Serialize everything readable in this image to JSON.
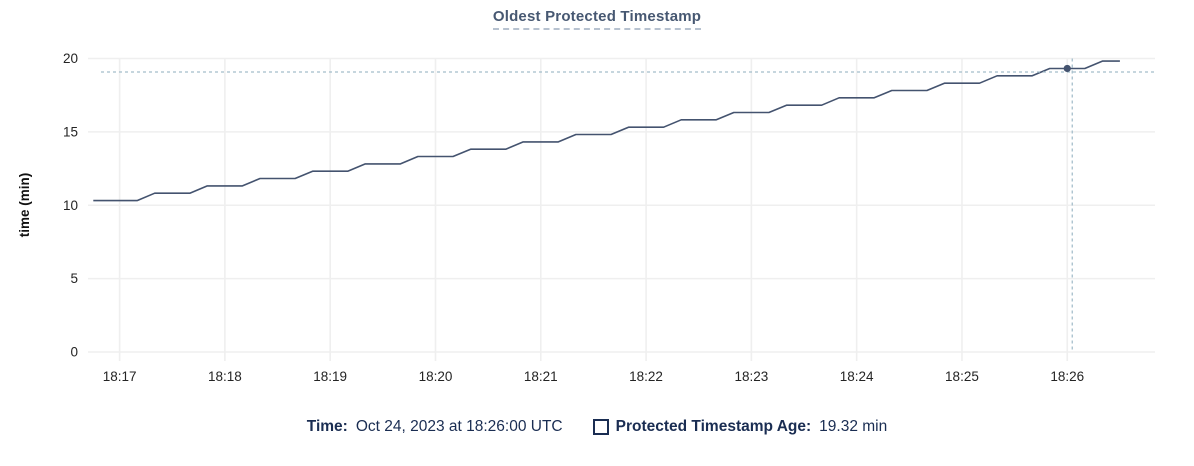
{
  "colors": {
    "title": "#475872",
    "title_underline": "#b7c2d0",
    "series_line": "#44536f",
    "crosshair": "#a5becb",
    "grid": "#efefef",
    "tick_text": "#242424",
    "tooltip_text": "#1a2d52"
  },
  "tooltip": {
    "time_label": "Time:",
    "time_value": "Oct 24, 2023 at 18:26:00 UTC",
    "series_label": "Protected Timestamp Age:",
    "series_value": "19.32 min"
  },
  "chart_data": {
    "type": "line",
    "title": "Oldest Protected Timestamp",
    "xlabel": "",
    "ylabel": "time (min)",
    "ylim": [
      0,
      20
    ],
    "yticks": [
      0,
      5,
      10,
      15,
      20
    ],
    "xticks": [
      "18:17",
      "18:18",
      "18:19",
      "18:20",
      "18:21",
      "18:22",
      "18:23",
      "18:24",
      "18:25",
      "18:26"
    ],
    "x_range": [
      "18:16:42",
      "18:26:50"
    ],
    "grid": true,
    "legend_position": "bottom",
    "crosshair": {
      "time": "18:26:00",
      "value": 19.32
    },
    "series": [
      {
        "name": "Protected Timestamp Age",
        "unit": "min",
        "points": [
          [
            "18:16:45",
            10.32
          ],
          [
            "18:16:50",
            10.32
          ],
          [
            "18:17:00",
            10.32
          ],
          [
            "18:17:10",
            10.32
          ],
          [
            "18:17:20",
            10.82
          ],
          [
            "18:17:30",
            10.82
          ],
          [
            "18:17:40",
            10.82
          ],
          [
            "18:17:50",
            11.32
          ],
          [
            "18:18:00",
            11.32
          ],
          [
            "18:18:10",
            11.32
          ],
          [
            "18:18:20",
            11.82
          ],
          [
            "18:18:30",
            11.82
          ],
          [
            "18:18:40",
            11.82
          ],
          [
            "18:18:50",
            12.32
          ],
          [
            "18:19:00",
            12.32
          ],
          [
            "18:19:10",
            12.32
          ],
          [
            "18:19:20",
            12.82
          ],
          [
            "18:19:30",
            12.82
          ],
          [
            "18:19:40",
            12.82
          ],
          [
            "18:19:50",
            13.32
          ],
          [
            "18:20:00",
            13.32
          ],
          [
            "18:20:10",
            13.32
          ],
          [
            "18:20:20",
            13.82
          ],
          [
            "18:20:30",
            13.82
          ],
          [
            "18:20:40",
            13.82
          ],
          [
            "18:20:50",
            14.32
          ],
          [
            "18:21:00",
            14.32
          ],
          [
            "18:21:10",
            14.32
          ],
          [
            "18:21:20",
            14.82
          ],
          [
            "18:21:30",
            14.82
          ],
          [
            "18:21:40",
            14.82
          ],
          [
            "18:21:50",
            15.32
          ],
          [
            "18:22:00",
            15.32
          ],
          [
            "18:22:10",
            15.32
          ],
          [
            "18:22:20",
            15.82
          ],
          [
            "18:22:30",
            15.82
          ],
          [
            "18:22:40",
            15.82
          ],
          [
            "18:22:50",
            16.32
          ],
          [
            "18:23:00",
            16.32
          ],
          [
            "18:23:10",
            16.32
          ],
          [
            "18:23:20",
            16.82
          ],
          [
            "18:23:30",
            16.82
          ],
          [
            "18:23:40",
            16.82
          ],
          [
            "18:23:50",
            17.32
          ],
          [
            "18:24:00",
            17.32
          ],
          [
            "18:24:10",
            17.32
          ],
          [
            "18:24:20",
            17.82
          ],
          [
            "18:24:30",
            17.82
          ],
          [
            "18:24:40",
            17.82
          ],
          [
            "18:24:50",
            18.32
          ],
          [
            "18:25:00",
            18.32
          ],
          [
            "18:25:10",
            18.32
          ],
          [
            "18:25:20",
            18.82
          ],
          [
            "18:25:30",
            18.82
          ],
          [
            "18:25:40",
            18.82
          ],
          [
            "18:25:50",
            19.32
          ],
          [
            "18:26:00",
            19.32
          ],
          [
            "18:26:10",
            19.32
          ],
          [
            "18:26:20",
            19.82
          ],
          [
            "18:26:30",
            19.82
          ]
        ]
      }
    ]
  }
}
